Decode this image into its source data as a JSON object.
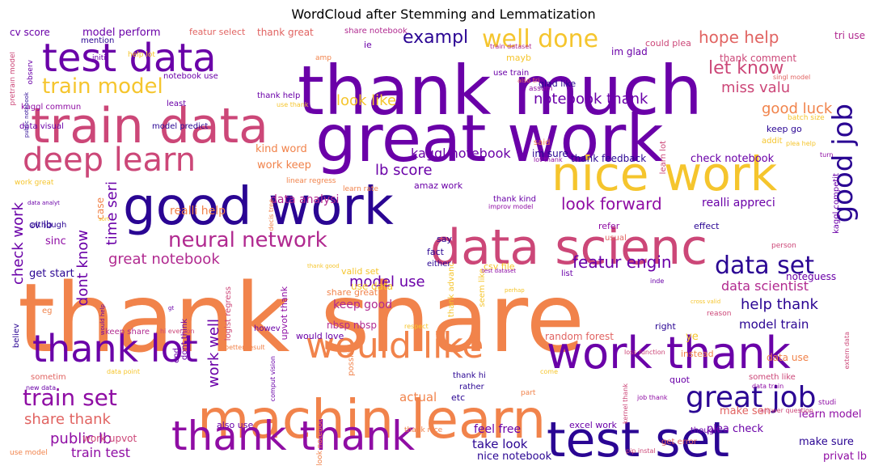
{
  "title": "WordCloud after Stemming and Lemmatization",
  "palette": {
    "deep_indigo": "#2a0593",
    "purple": "#6a00a8",
    "violet": "#8f0da4",
    "magenta": "#b12a90",
    "rose": "#cc4778",
    "coral": "#e16462",
    "orange": "#f1834b",
    "amber": "#fca636",
    "yellow": "#f0f921"
  },
  "words": [
    {
      "text": "thank share",
      "color": "#f1834b"
    },
    {
      "text": "great work",
      "color": "#6a00a8"
    },
    {
      "text": "thank much",
      "color": "#6a00a8"
    },
    {
      "text": "machin learn",
      "color": "#f1834b"
    },
    {
      "text": "data scienc",
      "color": "#cc4778"
    },
    {
      "text": "nice work",
      "color": "#f5c52d"
    },
    {
      "text": "good work",
      "color": "#2a0593"
    },
    {
      "text": "test set",
      "color": "#2a0593"
    },
    {
      "text": "work thank",
      "color": "#6a00a8"
    },
    {
      "text": "train data",
      "color": "#cc4778"
    },
    {
      "text": "test data",
      "color": "#6a00a8"
    },
    {
      "text": "thank thank",
      "color": "#8f0da4"
    },
    {
      "text": "thank lot",
      "color": "#6a00a8"
    },
    {
      "text": "would like",
      "color": "#f1834b"
    },
    {
      "text": "deep learn",
      "color": "#cc4778"
    },
    {
      "text": "great job",
      "color": "#2a0593"
    },
    {
      "text": "good job",
      "color": "#2a0593"
    },
    {
      "text": "well done",
      "color": "#f5c52d"
    },
    {
      "text": "train model",
      "color": "#f5c52d"
    },
    {
      "text": "data set",
      "color": "#2a0593"
    },
    {
      "text": "train set",
      "color": "#8f0da4"
    },
    {
      "text": "neural network",
      "color": "#b12a90"
    },
    {
      "text": "hope help",
      "color": "#e16462"
    },
    {
      "text": "exampl",
      "color": "#2a0593"
    },
    {
      "text": "let know",
      "color": "#cc4778"
    },
    {
      "text": "look forward",
      "color": "#8f0da4"
    },
    {
      "text": "featur engin",
      "color": "#6a00a8"
    },
    {
      "text": "great notebook",
      "color": "#b12a90"
    },
    {
      "text": "notebook thank",
      "color": "#6a00a8"
    },
    {
      "text": "good luck",
      "color": "#f1834b"
    },
    {
      "text": "look like",
      "color": "#f5c52d"
    },
    {
      "text": "help thank",
      "color": "#2a0593"
    },
    {
      "text": "lb score",
      "color": "#6a00a8"
    },
    {
      "text": "check work",
      "color": "#6a00a8"
    },
    {
      "text": "data scientist",
      "color": "#b12a90"
    },
    {
      "text": "share thank",
      "color": "#e16462"
    },
    {
      "text": "public lb",
      "color": "#8f0da4"
    },
    {
      "text": "model use",
      "color": "#6a00a8"
    },
    {
      "text": "kaggl notebook",
      "color": "#6a00a8"
    },
    {
      "text": "miss valu",
      "color": "#cc4778"
    },
    {
      "text": "time seri",
      "color": "#6a00a8"
    },
    {
      "text": "work well",
      "color": "#6a00a8"
    },
    {
      "text": "dont know",
      "color": "#6a00a8"
    },
    {
      "text": "model train",
      "color": "#2a0593"
    },
    {
      "text": "take look",
      "color": "#2a0593"
    },
    {
      "text": "feel free",
      "color": "#6a00a8"
    },
    {
      "text": "train test",
      "color": "#8f0da4"
    },
    {
      "text": "actual",
      "color": "#f1834b"
    },
    {
      "text": "data analysi",
      "color": "#b12a90"
    },
    {
      "text": "keep good",
      "color": "#b12a90"
    },
    {
      "text": "realli help",
      "color": "#f1834b"
    },
    {
      "text": "cv score",
      "color": "#6a00a8"
    },
    {
      "text": "model perform",
      "color": "#6a00a8"
    },
    {
      "text": "featur select",
      "color": "#e16462"
    },
    {
      "text": "thank great",
      "color": "#e16462"
    },
    {
      "text": "im glad",
      "color": "#6a00a8"
    },
    {
      "text": "tri use",
      "color": "#b12a90"
    },
    {
      "text": "thank comment",
      "color": "#cc4778"
    },
    {
      "text": "share notebook",
      "color": "#b12a90"
    },
    {
      "text": "realli appreci",
      "color": "#6a00a8"
    },
    {
      "text": "nice notebook",
      "color": "#2a0593"
    },
    {
      "text": "learn model",
      "color": "#8f0da4"
    },
    {
      "text": "make sure",
      "color": "#2a0593"
    },
    {
      "text": "privat lb",
      "color": "#8f0da4"
    },
    {
      "text": "plea check",
      "color": "#6a00a8"
    },
    {
      "text": "kaggl commun",
      "color": "#8f0da4"
    },
    {
      "text": "keep go",
      "color": "#2a0593"
    },
    {
      "text": "kind word",
      "color": "#f1834b"
    },
    {
      "text": "work keep",
      "color": "#f1834b"
    },
    {
      "text": "data use",
      "color": "#f1834b"
    },
    {
      "text": "random forest",
      "color": "#e16462"
    },
    {
      "text": "work upvot",
      "color": "#cc4778"
    },
    {
      "text": "im sure",
      "color": "#2a0593"
    },
    {
      "text": "check notebook",
      "color": "#6a00a8"
    },
    {
      "text": "get start",
      "color": "#2a0593"
    },
    {
      "text": "make sen",
      "color": "#e16462"
    },
    {
      "text": "thank feedback",
      "color": "#2a0593"
    },
    {
      "text": "use data",
      "color": "#f5c52d"
    },
    {
      "text": "nbsp nbsp",
      "color": "#b12a90"
    },
    {
      "text": "share great",
      "color": "#f1834b"
    },
    {
      "text": "amaz work",
      "color": "#6a00a8"
    },
    {
      "text": "dont think",
      "color": "#6a00a8"
    },
    {
      "text": "upvot thank",
      "color": "#8f0da4"
    },
    {
      "text": "would love",
      "color": "#6a00a8"
    },
    {
      "text": "valid set",
      "color": "#f5c52d"
    },
    {
      "text": "also use",
      "color": "#6a00a8"
    },
    {
      "text": "excel work",
      "color": "#6a00a8"
    },
    {
      "text": "csv file",
      "color": "#f5c52d"
    },
    {
      "text": "glad like",
      "color": "#2a0593"
    },
    {
      "text": "notebook use",
      "color": "#6a00a8"
    },
    {
      "text": "use train",
      "color": "#6a00a8"
    },
    {
      "text": "could plea",
      "color": "#cc4778"
    },
    {
      "text": "mention",
      "color": "#2a0593"
    },
    {
      "text": "thank help",
      "color": "#6a00a8"
    },
    {
      "text": "least",
      "color": "#6a00a8"
    },
    {
      "text": "data visual",
      "color": "#6a00a8"
    },
    {
      "text": "model predict",
      "color": "#2a0593"
    },
    {
      "text": "believ",
      "color": "#2a0593"
    },
    {
      "text": "sinc",
      "color": "#8f0da4"
    },
    {
      "text": "cv lb",
      "color": "#2a0593"
    },
    {
      "text": "although",
      "color": "#2a0593"
    },
    {
      "text": "eg",
      "color": "#f1834b"
    },
    {
      "text": "sometim",
      "color": "#e16462"
    },
    {
      "text": "keep share",
      "color": "#b12a90"
    },
    {
      "text": "logist regress",
      "color": "#cc4778"
    },
    {
      "text": "thank advanc",
      "color": "#f5c52d"
    },
    {
      "text": "seem like",
      "color": "#f5c52d"
    },
    {
      "text": "fact",
      "color": "#2a0593"
    },
    {
      "text": "say",
      "color": "#2a0593"
    },
    {
      "text": "either",
      "color": "#2a0593"
    },
    {
      "text": "etc",
      "color": "#2a0593"
    },
    {
      "text": "list",
      "color": "#6a00a8"
    },
    {
      "text": "right",
      "color": "#2a0593"
    },
    {
      "text": "refer",
      "color": "#8f0da4"
    },
    {
      "text": "usual",
      "color": "#e16462"
    },
    {
      "text": "effect",
      "color": "#2a0593"
    },
    {
      "text": "noteguess",
      "color": "#6a00a8"
    },
    {
      "text": "ye",
      "color": "#f5c52d"
    },
    {
      "text": "quot",
      "color": "#6a00a8"
    },
    {
      "text": "howev",
      "color": "#6a00a8"
    },
    {
      "text": "thank kind",
      "color": "#6a00a8"
    },
    {
      "text": "case",
      "color": "#f1834b"
    },
    {
      "text": "ie",
      "color": "#6a00a8"
    },
    {
      "text": "mayb",
      "color": "#f5c52d"
    },
    {
      "text": "addit",
      "color": "#f5c52d"
    },
    {
      "text": "said",
      "color": "#f1834b"
    },
    {
      "text": "learn lot",
      "color": "#cc4778"
    },
    {
      "text": "kaggl competit",
      "color": "#6a00a8"
    },
    {
      "text": "rather",
      "color": "#2a0593"
    },
    {
      "text": "thank hi",
      "color": "#2a0593"
    },
    {
      "text": "possibl",
      "color": "#f1834b"
    },
    {
      "text": "instead",
      "color": "#f1834b"
    },
    {
      "text": "someth like",
      "color": "#cc4778"
    },
    {
      "text": "though",
      "color": "#6a00a8"
    },
    {
      "text": "get error",
      "color": "#e16462"
    },
    {
      "text": "end",
      "color": "#6a00a8"
    },
    {
      "text": "observ",
      "color": "#6a00a8"
    },
    {
      "text": "initi",
      "color": "#6a00a8"
    },
    {
      "text": "amp",
      "color": "#f1834b"
    },
    {
      "text": "pretrain model",
      "color": "#cc4778"
    },
    {
      "text": "help lot",
      "color": "#f5c52d"
    },
    {
      "text": "train dataset",
      "color": "#b12a90"
    },
    {
      "text": "also tri",
      "color": "#e16462"
    },
    {
      "text": "singl model",
      "color": "#e16462"
    },
    {
      "text": "use thank",
      "color": "#f5c52d"
    },
    {
      "text": "assum",
      "color": "#8f0da4"
    },
    {
      "text": "batch size",
      "color": "#f5c52d"
    },
    {
      "text": "plea help",
      "color": "#f5c52d"
    },
    {
      "text": "lot thank",
      "color": "#8f0da4"
    },
    {
      "text": "work great",
      "color": "#f5c52d"
    },
    {
      "text": "linear regress",
      "color": "#f1834b"
    },
    {
      "text": "learn rate",
      "color": "#f1834b"
    },
    {
      "text": "improv model",
      "color": "#8f0da4"
    },
    {
      "text": "decis tree",
      "color": "#f1834b"
    },
    {
      "text": "thank good",
      "color": "#f5c52d"
    },
    {
      "text": "test dataset",
      "color": "#8f0da4"
    },
    {
      "text": "perhap",
      "color": "#f5c52d"
    },
    {
      "text": "cross valid",
      "color": "#f5c52d"
    },
    {
      "text": "reason",
      "color": "#cc4778"
    },
    {
      "text": "person",
      "color": "#cc4778"
    },
    {
      "text": "respect",
      "color": "#f5c52d"
    },
    {
      "text": "hi everyon",
      "color": "#cc4778"
    },
    {
      "text": "better result",
      "color": "#f1834b"
    },
    {
      "text": "loss function",
      "color": "#cc4778"
    },
    {
      "text": "data train",
      "color": "#8f0da4"
    },
    {
      "text": "job thank",
      "color": "#8f0da4"
    },
    {
      "text": "thank nice",
      "color": "#f1834b"
    },
    {
      "text": "comput vision",
      "color": "#6a00a8"
    },
    {
      "text": "data point",
      "color": "#f5c52d"
    },
    {
      "text": "new data",
      "color": "#6a00a8"
    },
    {
      "text": "use model",
      "color": "#f1834b"
    },
    {
      "text": "pip instal",
      "color": "#cc4778"
    },
    {
      "text": "studi",
      "color": "#8f0da4"
    },
    {
      "text": "turn",
      "color": "#8f0da4"
    },
    {
      "text": "part",
      "color": "#f1834b"
    },
    {
      "text": "come",
      "color": "#f5c52d"
    },
    {
      "text": "inde",
      "color": "#6a00a8"
    },
    {
      "text": "gt",
      "color": "#6a00a8"
    },
    {
      "text": "would help",
      "color": "#6a00a8"
    },
    {
      "text": "sort",
      "color": "#f5c52d"
    },
    {
      "text": "data analyt",
      "color": "#6a00a8"
    },
    {
      "text": "public notebook",
      "color": "#2a0593"
    },
    {
      "text": "answer question",
      "color": "#cc4778"
    },
    {
      "text": "kernel thank",
      "color": "#cc4778"
    },
    {
      "text": "look notebook",
      "color": "#f1834b"
    },
    {
      "text": "extern data",
      "color": "#cc4778"
    }
  ]
}
